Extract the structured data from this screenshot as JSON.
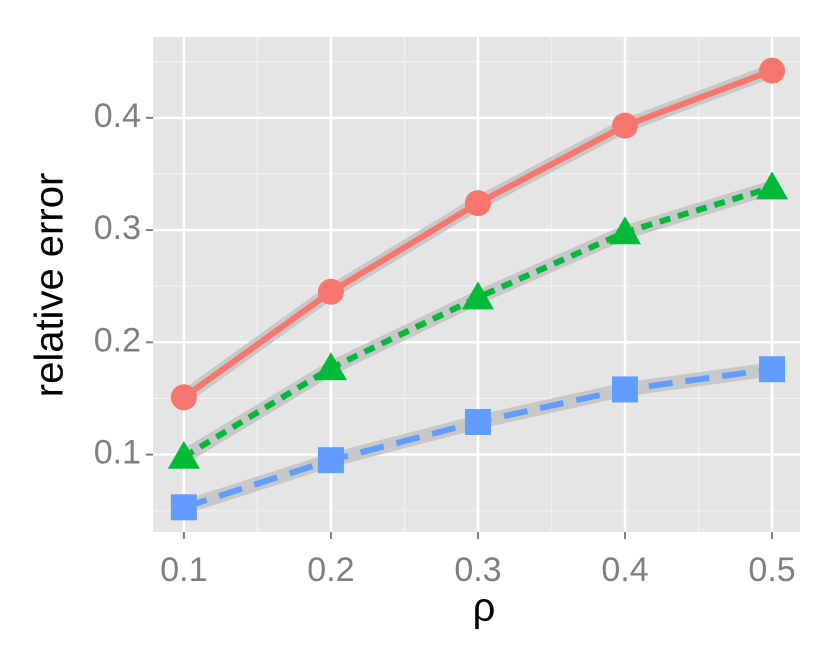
{
  "chart_data": {
    "type": "line",
    "x_label": "ρ",
    "y_label": "relative error",
    "x": [
      0.1,
      0.2,
      0.3,
      0.4,
      0.5
    ],
    "series": [
      {
        "color": "#f8766d",
        "marker": "circle",
        "line_style": "solid",
        "values": [
          0.151,
          0.245,
          0.324,
          0.393,
          0.442
        ]
      },
      {
        "color": "#00ba38",
        "marker": "triangle",
        "line_style": "dotted",
        "values": [
          0.098,
          0.177,
          0.24,
          0.298,
          0.338
        ]
      },
      {
        "color": "#619cff",
        "marker": "square",
        "line_style": "dashed",
        "values": [
          0.053,
          0.095,
          0.129,
          0.158,
          0.176
        ]
      }
    ],
    "xlim": [
      0.079,
      0.519
    ],
    "xticks": [
      0.1,
      0.2,
      0.3,
      0.4,
      0.5
    ],
    "ylim": [
      0.031,
      0.472
    ],
    "yticks": [
      0.1,
      0.2,
      0.3,
      0.4
    ],
    "grid": true,
    "minor_grid": true,
    "smooth_band_color": "#c8c8c8"
  }
}
